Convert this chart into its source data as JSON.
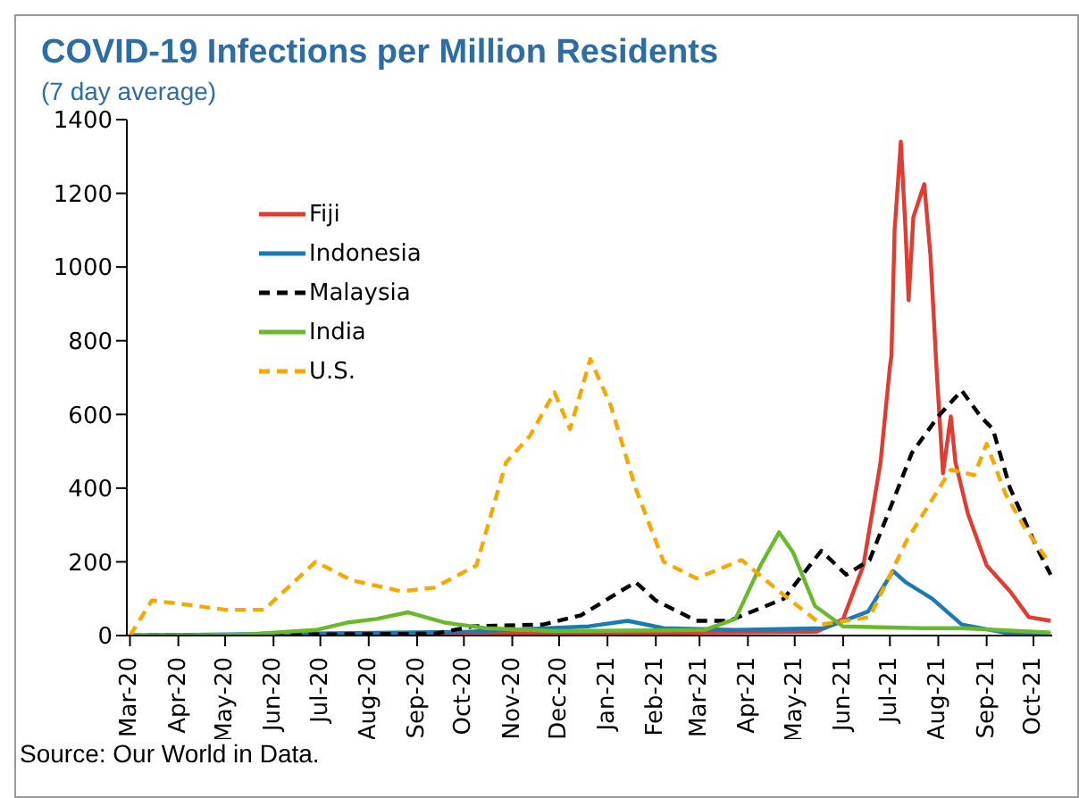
{
  "chart_data": {
    "type": "line",
    "title": "COVID-19 Infections per Million Residents",
    "subtitle": "(7 day average)",
    "xlim": [
      "2020-02-28",
      "2021-10-13"
    ],
    "xticks": [
      {
        "value": "2020-03",
        "label": "Mar-20"
      },
      {
        "value": "2020-04",
        "label": "Apr-20"
      },
      {
        "value": "2020-05",
        "label": "May-20"
      },
      {
        "value": "2020-06",
        "label": "Jun-20"
      },
      {
        "value": "2020-07",
        "label": "Jul-20"
      },
      {
        "value": "2020-08",
        "label": "Aug-20"
      },
      {
        "value": "2020-09",
        "label": "Sep-20"
      },
      {
        "value": "2020-10",
        "label": "Oct-20"
      },
      {
        "value": "2020-11",
        "label": "Nov-20"
      },
      {
        "value": "2020-12",
        "label": "Dec-20"
      },
      {
        "value": "2021-01",
        "label": "Jan-21"
      },
      {
        "value": "2021-02",
        "label": "Feb-21"
      },
      {
        "value": "2021-03",
        "label": "Mar-21"
      },
      {
        "value": "2021-04",
        "label": "Apr-21"
      },
      {
        "value": "2021-05",
        "label": "May-21"
      },
      {
        "value": "2021-06",
        "label": "Jun-21"
      },
      {
        "value": "2021-07",
        "label": "Jul-21"
      },
      {
        "value": "2021-08",
        "label": "Aug-21"
      },
      {
        "value": "2021-09",
        "label": "Sep-21"
      },
      {
        "value": "2021-10",
        "label": "Oct-21"
      }
    ],
    "ylim": [
      0,
      1400
    ],
    "yticks": [
      0,
      200,
      400,
      600,
      800,
      1000,
      1200,
      1400
    ],
    "grid": false,
    "legend": "top left",
    "marker": "none",
    "series": [
      {
        "name": "Fiji",
        "color": "#e03c31",
        "line_style": "solid",
        "x": [
          "2020-03-01",
          "2021-05-15",
          "2021-06-01",
          "2021-06-14",
          "2021-06-25",
          "2021-07-01",
          "2021-07-02",
          "2021-07-04",
          "2021-07-08",
          "2021-07-11",
          "2021-07-13",
          "2021-07-16",
          "2021-07-23",
          "2021-07-27",
          "2021-07-31",
          "2021-08-04",
          "2021-08-09",
          "2021-08-12",
          "2021-08-20",
          "2021-09-01",
          "2021-09-16",
          "2021-09-28",
          "2021-10-12"
        ],
        "values": [
          0,
          10,
          45,
          190,
          470,
          730,
          760,
          1100,
          1340,
          1100,
          910,
          1135,
          1225,
          1030,
          715,
          440,
          595,
          470,
          330,
          190,
          120,
          50,
          40
        ]
      },
      {
        "name": "Indonesia",
        "color": "#1a7ab5",
        "line_style": "solid",
        "x": [
          "2020-03-01",
          "2020-10-01",
          "2020-12-20",
          "2021-01-14",
          "2021-02-06",
          "2021-03-24",
          "2021-05-20",
          "2021-06-17",
          "2021-07-03",
          "2021-07-11",
          "2021-07-28",
          "2021-08-16",
          "2021-09-16",
          "2021-10-12"
        ],
        "values": [
          0,
          10,
          25,
          40,
          20,
          15,
          20,
          65,
          175,
          145,
          100,
          30,
          5,
          3
        ]
      },
      {
        "name": "Malaysia",
        "color": "#000000",
        "line_style": "dashed",
        "x": [
          "2020-03-01",
          "2020-09-12",
          "2020-10-07",
          "2020-11-21",
          "2020-12-15",
          "2021-01-19",
          "2021-02-01",
          "2021-02-27",
          "2021-03-20",
          "2021-04-24",
          "2021-05-18",
          "2021-06-03",
          "2021-06-18",
          "2021-07-03",
          "2021-07-15",
          "2021-08-01",
          "2021-08-16",
          "2021-08-28",
          "2021-09-05",
          "2021-09-16",
          "2021-10-03",
          "2021-10-12"
        ],
        "values": [
          0,
          5,
          25,
          30,
          55,
          145,
          95,
          40,
          40,
          100,
          230,
          165,
          205,
          365,
          495,
          595,
          665,
          595,
          560,
          400,
          240,
          165
        ]
      },
      {
        "name": "India",
        "color": "#6ab82e",
        "line_style": "solid",
        "x": [
          "2020-03-01",
          "2020-05-10",
          "2020-06-28",
          "2020-07-18",
          "2020-08-06",
          "2020-08-26",
          "2020-09-19",
          "2020-10-15",
          "2020-11-28",
          "2021-03-04",
          "2021-03-24",
          "2021-04-09",
          "2021-04-21",
          "2021-04-30",
          "2021-05-14",
          "2021-06-01",
          "2021-07-20",
          "2021-08-16",
          "2021-10-12"
        ],
        "values": [
          0,
          2,
          15,
          35,
          45,
          63,
          35,
          20,
          12,
          15,
          45,
          190,
          280,
          225,
          80,
          25,
          20,
          20,
          8
        ]
      },
      {
        "name": "U.S.",
        "color": "#f5a800",
        "line_style": "dashed",
        "x": [
          "2020-03-01",
          "2020-03-15",
          "2020-04-04",
          "2020-05-01",
          "2020-05-26",
          "2020-06-28",
          "2020-07-21",
          "2020-08-22",
          "2020-09-12",
          "2020-10-09",
          "2020-10-28",
          "2020-11-12",
          "2020-11-28",
          "2020-12-08",
          "2020-12-21",
          "2021-01-03",
          "2021-01-19",
          "2021-02-06",
          "2021-02-27",
          "2021-03-28",
          "2021-04-21",
          "2021-05-18",
          "2021-06-18",
          "2021-07-12",
          "2021-08-09",
          "2021-08-24",
          "2021-09-01",
          "2021-09-13",
          "2021-09-25",
          "2021-10-10"
        ],
        "values": [
          0,
          95,
          85,
          70,
          70,
          200,
          150,
          120,
          130,
          190,
          470,
          540,
          660,
          560,
          750,
          625,
          400,
          200,
          155,
          205,
          120,
          30,
          50,
          260,
          450,
          435,
          520,
          385,
          295,
          205
        ]
      }
    ],
    "annotations": [
      "Source: Our World in Data."
    ]
  }
}
